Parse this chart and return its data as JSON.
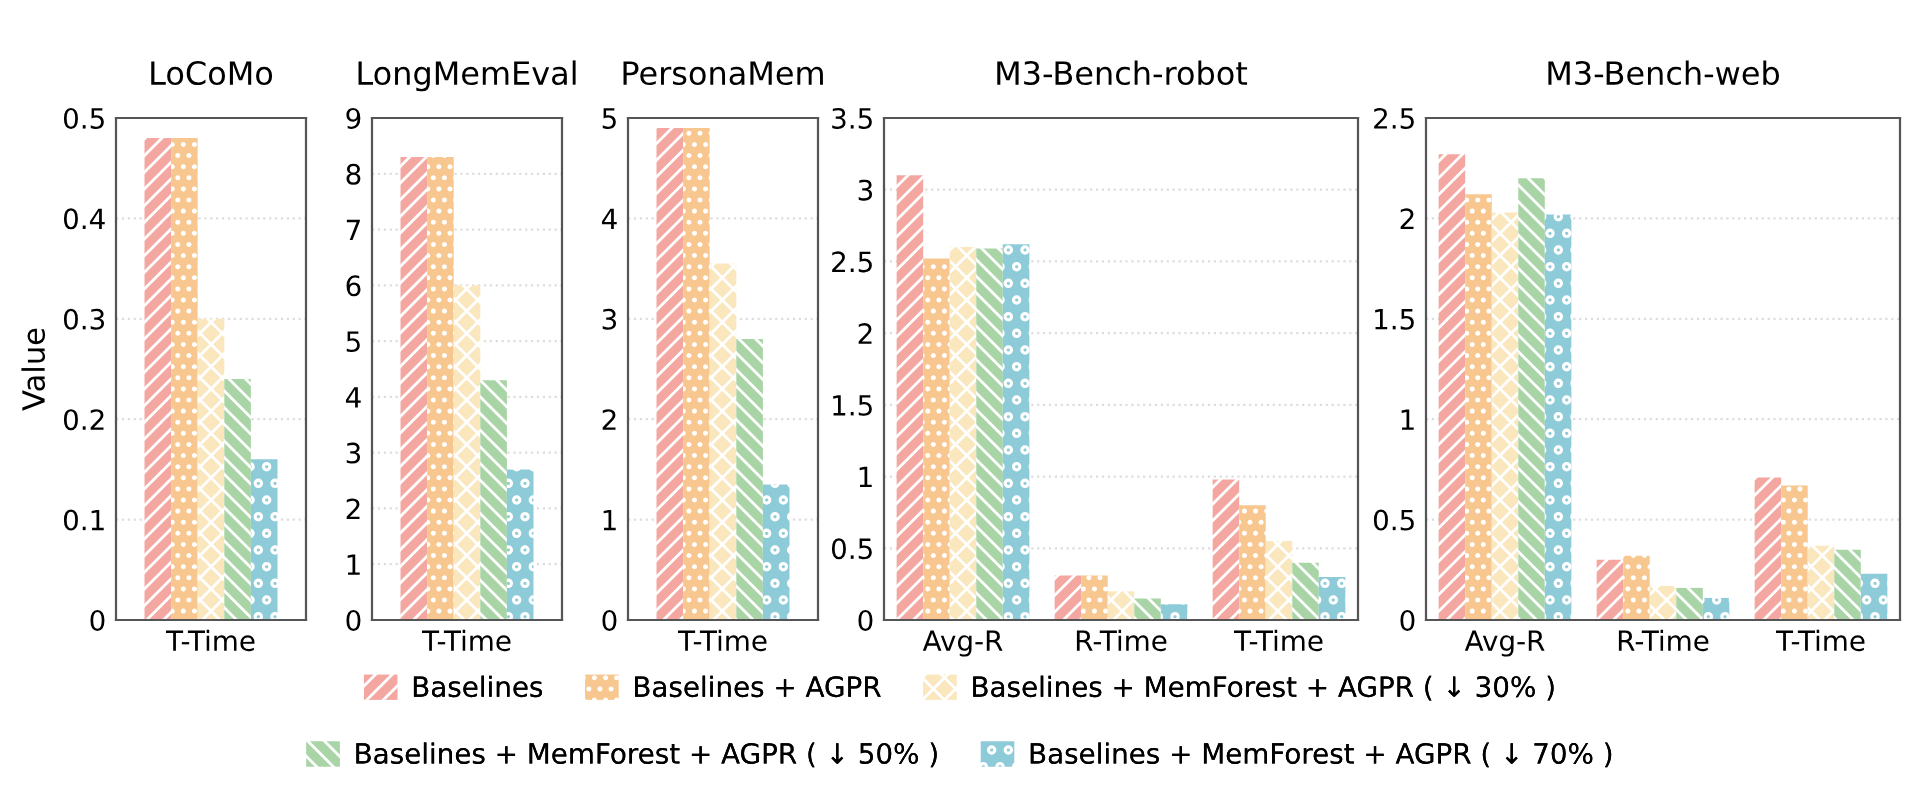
{
  "chart_data": [
    {
      "type": "bar",
      "title": "LoCoMo",
      "ylabel": "Value",
      "categories": [
        "T-Time"
      ],
      "ylim": [
        0,
        0.5
      ],
      "yticks": [
        0,
        0.1,
        0.2,
        0.3,
        0.4,
        0.5
      ],
      "grid": "y",
      "legend": "bottom",
      "series": [
        {
          "name": "Baselines",
          "color": "#f4a7a0",
          "values": [
            0.48
          ]
        },
        {
          "name": "Baselines + AGPR",
          "color": "#f8c78f",
          "values": [
            0.48
          ]
        },
        {
          "name": "Baselines + MemForest + AGPR ( ↓ 30% )",
          "color": "#fbe7bd",
          "values": [
            0.3
          ]
        },
        {
          "name": "Baselines + MemForest + AGPR ( ↓ 50% )",
          "color": "#a9d4a6",
          "values": [
            0.24
          ]
        },
        {
          "name": "Baselines + MemForest + AGPR ( ↓ 70% )",
          "color": "#8dcbd9",
          "values": [
            0.16
          ]
        }
      ]
    },
    {
      "type": "bar",
      "title": "LongMemEval",
      "categories": [
        "T-Time"
      ],
      "ylim": [
        0,
        9
      ],
      "yticks": [
        0,
        1,
        2,
        3,
        4,
        5,
        6,
        7,
        8,
        9
      ],
      "grid": "y",
      "series": [
        {
          "color": "#f4a7a0",
          "values": [
            8.3
          ]
        },
        {
          "color": "#f8c78f",
          "values": [
            8.3
          ]
        },
        {
          "color": "#fbe7bd",
          "values": [
            6.0
          ]
        },
        {
          "color": "#a9d4a6",
          "values": [
            4.3
          ]
        },
        {
          "color": "#8dcbd9",
          "values": [
            2.7
          ]
        }
      ]
    },
    {
      "type": "bar",
      "title": "PersonaMem",
      "categories": [
        "T-Time"
      ],
      "ylim": [
        0,
        5
      ],
      "yticks": [
        0,
        1,
        2,
        3,
        4,
        5
      ],
      "grid": "y",
      "series": [
        {
          "color": "#f4a7a0",
          "values": [
            4.9
          ]
        },
        {
          "color": "#f8c78f",
          "values": [
            4.9
          ]
        },
        {
          "color": "#fbe7bd",
          "values": [
            3.55
          ]
        },
        {
          "color": "#a9d4a6",
          "values": [
            2.8
          ]
        },
        {
          "color": "#8dcbd9",
          "values": [
            1.35
          ]
        }
      ]
    },
    {
      "type": "bar",
      "title": "M3-Bench-robot",
      "categories": [
        "Avg-R",
        "R-Time",
        "T-Time"
      ],
      "ylim": [
        0,
        3.5
      ],
      "yticks": [
        0,
        0.5,
        1,
        1.5,
        2,
        2.5,
        3,
        3.5
      ],
      "grid": "y",
      "series": [
        {
          "color": "#f4a7a0",
          "values": [
            3.1,
            0.31,
            0.98
          ]
        },
        {
          "color": "#f8c78f",
          "values": [
            2.52,
            0.31,
            0.8
          ]
        },
        {
          "color": "#fbe7bd",
          "values": [
            2.6,
            0.2,
            0.55
          ]
        },
        {
          "color": "#a9d4a6",
          "values": [
            2.59,
            0.15,
            0.4
          ]
        },
        {
          "color": "#8dcbd9",
          "values": [
            2.62,
            0.11,
            0.3
          ]
        }
      ]
    },
    {
      "type": "bar",
      "title": "M3-Bench-web",
      "categories": [
        "Avg-R",
        "R-Time",
        "T-Time"
      ],
      "ylim": [
        0,
        2.5
      ],
      "yticks": [
        0,
        0.5,
        1,
        1.5,
        2,
        2.5
      ],
      "grid": "y",
      "series": [
        {
          "color": "#f4a7a0",
          "values": [
            2.32,
            0.3,
            0.71
          ]
        },
        {
          "color": "#f8c78f",
          "values": [
            2.12,
            0.32,
            0.67
          ]
        },
        {
          "color": "#fbe7bd",
          "values": [
            2.03,
            0.17,
            0.37
          ]
        },
        {
          "color": "#a9d4a6",
          "values": [
            2.2,
            0.16,
            0.35
          ]
        },
        {
          "color": "#8dcbd9",
          "values": [
            2.02,
            0.11,
            0.23
          ]
        }
      ]
    }
  ]
}
